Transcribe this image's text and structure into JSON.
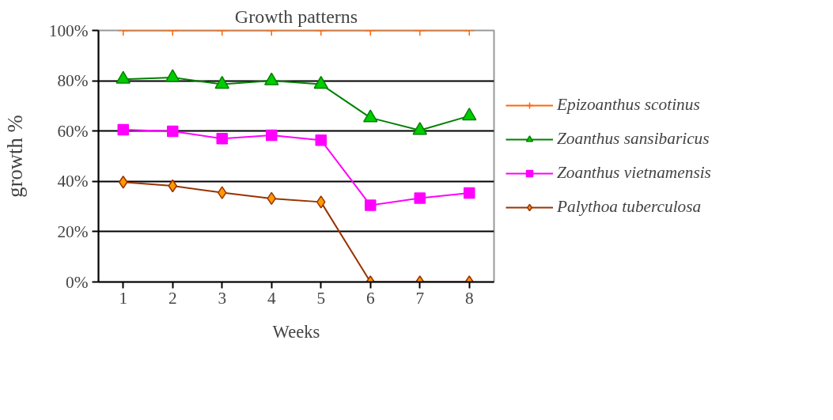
{
  "chart_data": {
    "type": "line",
    "title": "Growth patterns",
    "xlabel": "Weeks",
    "ylabel": "growth %",
    "categories": [
      "1",
      "2",
      "3",
      "4",
      "5",
      "6",
      "7",
      "8"
    ],
    "series": [
      {
        "name": "Epizoanthus scotinus",
        "color": "#ff6600",
        "marker": "cross",
        "values": [
          100,
          100,
          100,
          100,
          100,
          100,
          100,
          100
        ]
      },
      {
        "name": "Zoanthus sansibaricus",
        "color": "#008000",
        "marker": "triangle",
        "values": [
          80.6,
          81.3,
          78.6,
          80,
          78.6,
          65.3,
          60.3,
          66
        ]
      },
      {
        "name": "Zoanthus vietnamensis",
        "color": "#ff00ff",
        "marker": "square",
        "values": [
          60.5,
          59.9,
          57,
          58.3,
          56.4,
          30.5,
          33.3,
          35.4
        ]
      },
      {
        "name": "Palythoa tuberculosa",
        "color": "#993300",
        "marker": "diamond",
        "values": [
          39.7,
          38.2,
          35.5,
          33.2,
          31.8,
          0,
          0,
          0
        ]
      }
    ],
    "ylim": [
      0,
      100
    ],
    "yticks": [
      {
        "value": 0,
        "label": "0%"
      },
      {
        "value": 20,
        "label": "20%"
      },
      {
        "value": 40,
        "label": "40%"
      },
      {
        "value": 60,
        "label": "60%"
      },
      {
        "value": 80,
        "label": "80%"
      },
      {
        "value": 100,
        "label": "100%"
      }
    ],
    "grid": "y",
    "legend": "right",
    "line_style": "solid"
  }
}
